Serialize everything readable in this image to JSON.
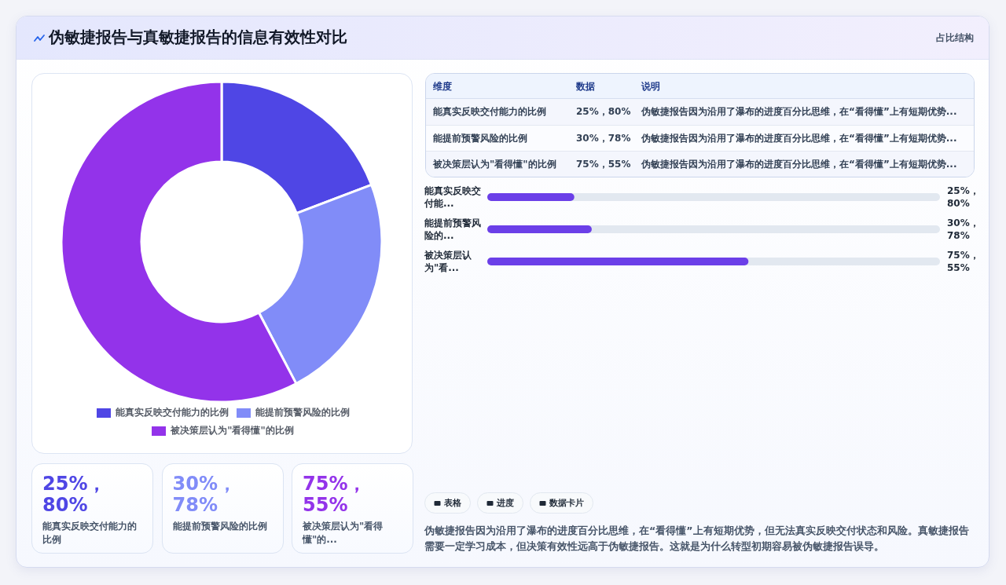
{
  "chart_data": [
    {
      "type": "other",
      "title": "伪敏捷报告与真敏捷报告的信息有效性对比",
      "subtitle": "占比结构"
    },
    {
      "type": "donut",
      "categories": [
        "能真实反映交付能力的比例",
        "能提前预警风险的比例",
        "被决策层认为\"看得懂\"的比例"
      ],
      "values": [
        19.2,
        23.1,
        57.7
      ],
      "colors": [
        "#4f46e5",
        "#818cf8",
        "#9333ea"
      ],
      "legend": "bottom"
    },
    {
      "type": "other",
      "categories": [
        "能真实反映交付能力的比例",
        "能提前预警风险的比例",
        "被决策层认为\"看得懂\"的比例"
      ],
      "value_labels": [
        "25%，80%",
        "30%，78%",
        "75%，55%"
      ],
      "annotations": [
        "维度",
        "数据",
        "说明",
        "伪敏捷报告因为沿用了瀑布的进度百分比思维，在“看得懂”上有短期优势...",
        "伪敏捷报告因为沿用了瀑布的进度百分比思维，在“看得懂”上有短期优势...",
        "伪敏捷报告因为沿用了瀑布的进度百分比思维，在“看得懂”上有短期优势..."
      ]
    },
    {
      "type": "bar",
      "orientation": "horizontal",
      "categories": [
        "能真实反映交付能...",
        "能提前预警风险的...",
        "被决策层认为\"看..."
      ],
      "values": [
        25,
        30,
        75
      ],
      "value_labels": [
        "25%，80%",
        "30%，78%",
        "75%，55%"
      ],
      "color": "#6b3fe8"
    },
    {
      "type": "other",
      "categories": [
        "能真实反映交付能力的比例",
        "能提前预警风险的比例",
        "被决策层认为\"看得懂\"的..."
      ],
      "value_labels": [
        "25%，80%",
        "30%，78%",
        "75%，55%"
      ]
    },
    {
      "type": "other",
      "annotations": [
        "表格",
        "进度",
        "数据卡片",
        "伪敏捷报告因为沿用了瀑布的进度百分比思维，在“看得懂”上有短期优势，但无法真实反映交付状态和风险。真敏捷报告需要一定学习成本，但决策有效性远高于伪敏捷报告。这就是为什么转型初期容易被伪敏捷报告误导。"
      ]
    }
  ]
}
